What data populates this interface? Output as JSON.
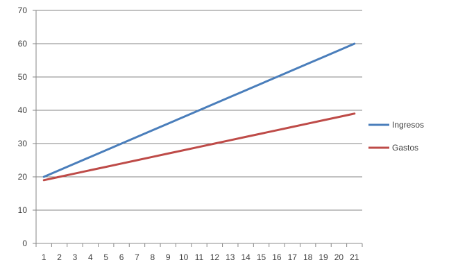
{
  "chart_data": {
    "type": "line",
    "x": [
      1,
      2,
      3,
      4,
      5,
      6,
      7,
      8,
      9,
      10,
      11,
      12,
      13,
      14,
      15,
      16,
      17,
      18,
      19,
      20,
      21
    ],
    "series": [
      {
        "name": "Ingresos",
        "color": "#4a7ebb",
        "values": [
          20,
          22,
          24,
          26,
          28,
          30,
          32,
          34,
          36,
          38,
          40,
          42,
          44,
          46,
          48,
          50,
          52,
          54,
          56,
          58,
          60
        ]
      },
      {
        "name": "Gastos",
        "color": "#be4b48",
        "values": [
          19,
          20,
          21,
          22,
          23,
          24,
          25,
          26,
          27,
          28,
          29,
          30,
          31,
          32,
          33,
          34,
          35,
          36,
          37,
          38,
          39
        ]
      }
    ],
    "ylim": [
      0,
      70
    ],
    "yticks": [
      0,
      10,
      20,
      30,
      40,
      50,
      60,
      70
    ],
    "grid": true,
    "legend": "right"
  }
}
